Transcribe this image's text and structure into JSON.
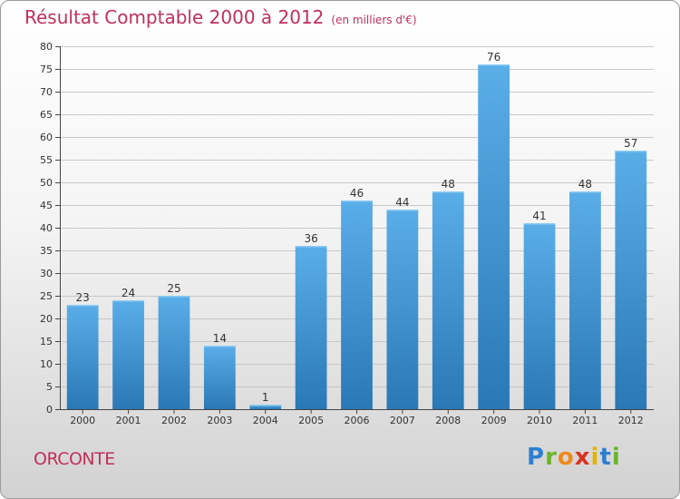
{
  "header": {
    "title": "Résultat Comptable 2000 à 2012",
    "unit": "(en milliers d'€)"
  },
  "footer": {
    "commune": "ORCONTE",
    "logo_text": "Proxiti"
  },
  "colors": {
    "title": "#c0305a",
    "bar_light": "#5aaee8",
    "bar_dark": "#2a78b6",
    "grid": "#c8c8c8"
  },
  "chart_data": {
    "type": "bar",
    "title": "Résultat Comptable 2000 à 2012",
    "subtitle": "(en milliers d'€)",
    "xlabel": "",
    "ylabel": "",
    "categories": [
      "2000",
      "2001",
      "2002",
      "2003",
      "2004",
      "2005",
      "2006",
      "2007",
      "2008",
      "2009",
      "2010",
      "2011",
      "2012"
    ],
    "values": [
      23,
      24,
      25,
      14,
      1,
      36,
      46,
      44,
      48,
      76,
      41,
      48,
      57
    ],
    "ylim": [
      0,
      80
    ],
    "ytick_step": 5,
    "grid": true,
    "legend": "none"
  }
}
